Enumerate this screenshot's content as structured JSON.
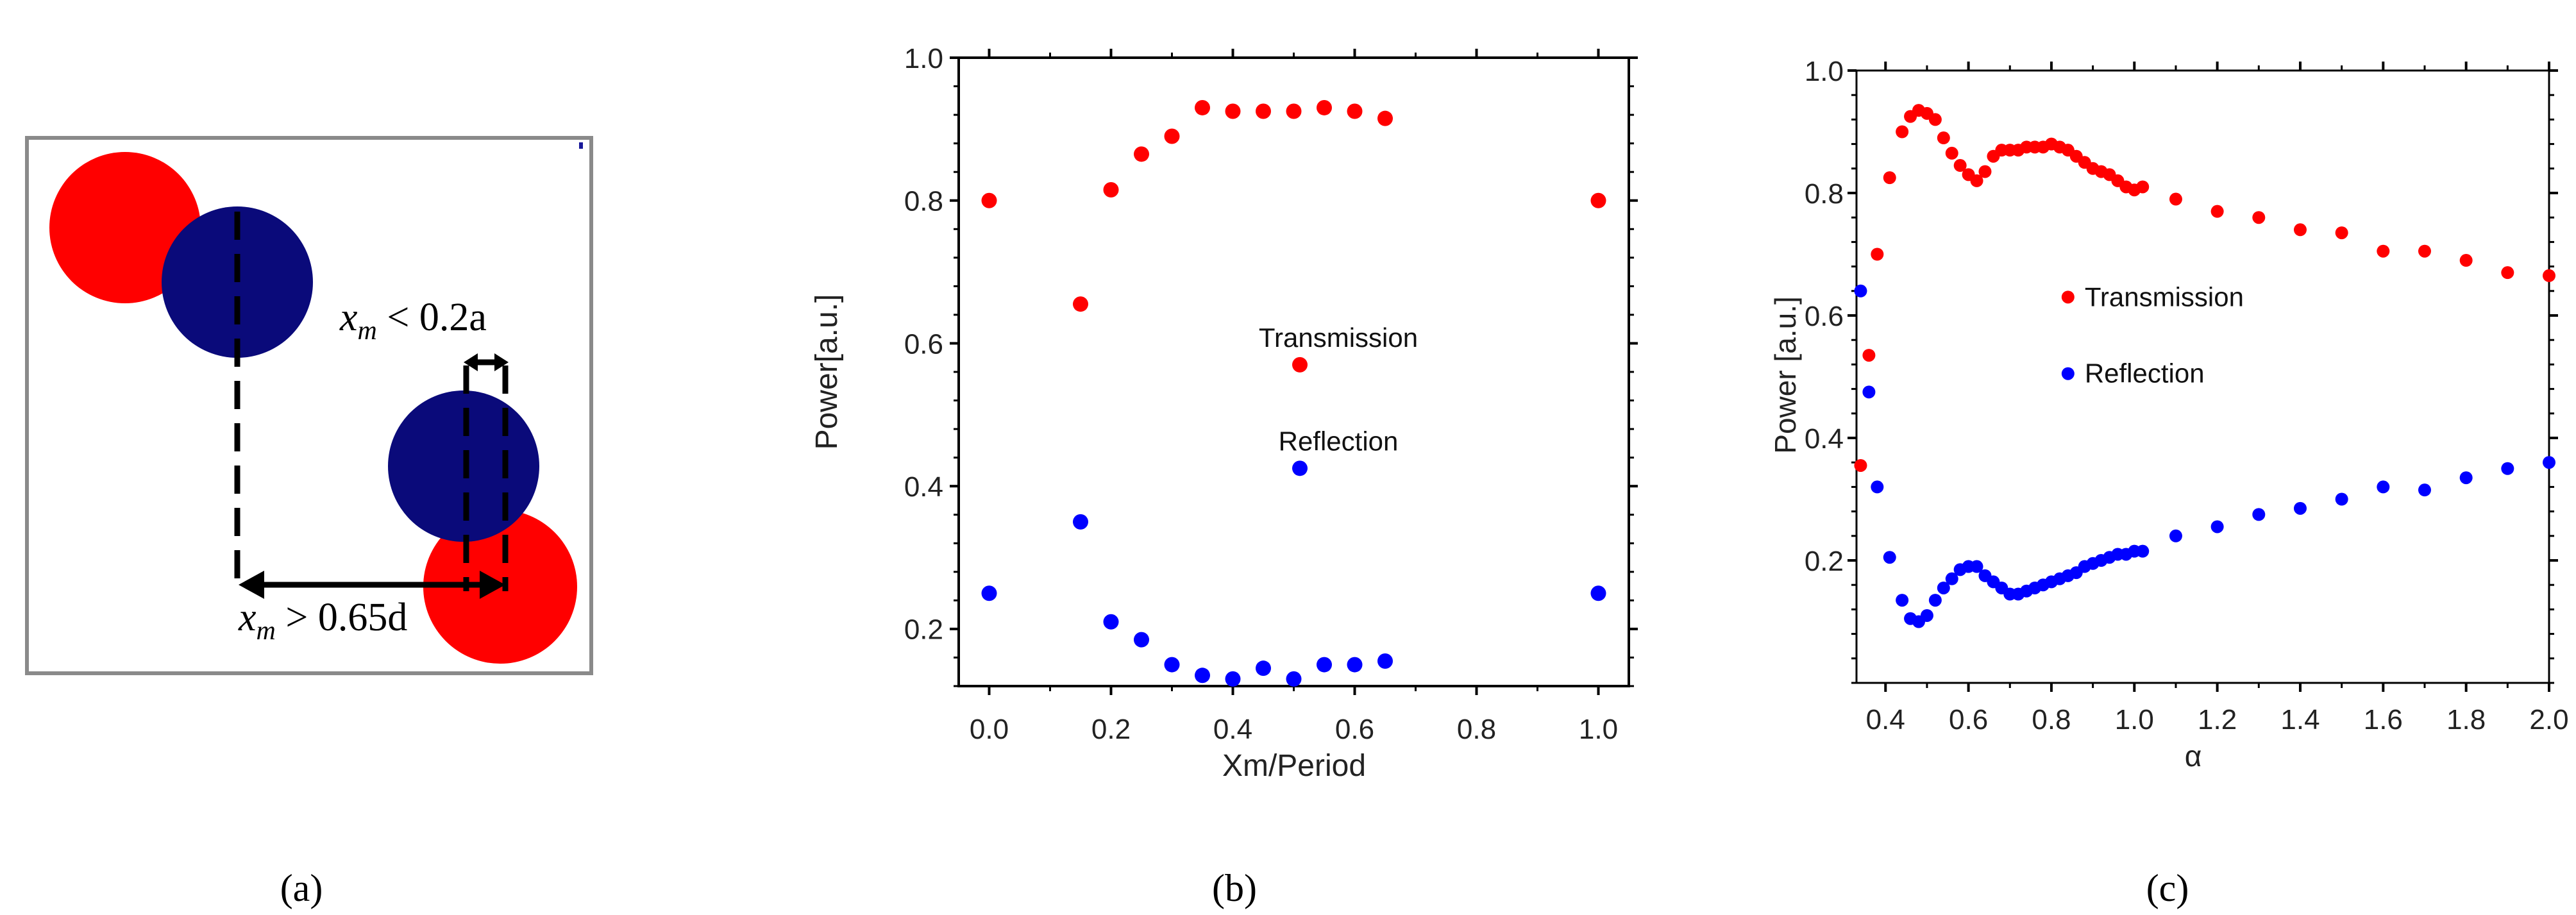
{
  "panel_labels": [
    "(a)",
    "(b)",
    "(c)"
  ],
  "panel_a": {
    "label_xm_small": "x",
    "label_xm_small_sub": "m",
    "label_xm_small_rest": " < 0.2a",
    "label_xm_large": "x",
    "label_xm_large_sub": "m",
    "label_xm_large_rest": " > 0.65d",
    "colors": {
      "red": "#ff0000",
      "navy": "#0a0a7a",
      "frame": "#8a8a8a"
    }
  },
  "chart_data": [
    {
      "type": "scatter",
      "panel": "(b)",
      "xlabel": "Xm/Period",
      "ylabel": "Power[a.u.]",
      "xlim": [
        -0.05,
        1.05
      ],
      "ylim": [
        0.12,
        1.0
      ],
      "xticks": [
        0.0,
        0.2,
        0.4,
        0.6,
        0.8,
        1.0
      ],
      "xtick_labels": [
        "0.0",
        "0.2",
        "0.4",
        "0.6",
        "0.8",
        "1.0"
      ],
      "yticks": [
        0.2,
        0.4,
        0.6,
        0.8,
        1.0
      ],
      "ytick_labels": [
        "0.2",
        "0.4",
        "0.6",
        "0.8",
        "1.0"
      ],
      "series": [
        {
          "name": "Transmission",
          "color": "#ff0000",
          "x": [
            0.0,
            0.15,
            0.2,
            0.25,
            0.3,
            0.35,
            0.4,
            0.45,
            0.5,
            0.55,
            0.6,
            0.65,
            1.0
          ],
          "y": [
            0.8,
            0.655,
            0.815,
            0.865,
            0.89,
            0.93,
            0.925,
            0.925,
            0.925,
            0.93,
            0.925,
            0.915,
            0.8
          ]
        },
        {
          "name": "Reflection",
          "color": "#0000ff",
          "x": [
            0.0,
            0.15,
            0.2,
            0.25,
            0.3,
            0.35,
            0.4,
            0.45,
            0.5,
            0.55,
            0.6,
            0.65,
            1.0
          ],
          "y": [
            0.25,
            0.35,
            0.21,
            0.185,
            0.15,
            0.135,
            0.13,
            0.145,
            0.13,
            0.15,
            0.15,
            0.155,
            0.25
          ]
        }
      ],
      "legend": [
        {
          "name": "Transmission",
          "color": "#ff0000",
          "marker_x": 0.51,
          "marker_y": 0.57
        },
        {
          "name": "Reflection",
          "color": "#0000ff",
          "marker_x": 0.51,
          "marker_y": 0.425
        }
      ],
      "legend_placement": "center"
    },
    {
      "type": "scatter",
      "panel": "(c)",
      "xlabel": "α",
      "ylabel": "Power [a.u.]",
      "xlim": [
        0.33,
        2.0
      ],
      "ylim": [
        0.0,
        1.0
      ],
      "xticks": [
        0.4,
        0.6,
        0.8,
        1.0,
        1.2,
        1.4,
        1.6,
        1.8,
        2.0
      ],
      "xtick_labels": [
        "0.4",
        "0.6",
        "0.8",
        "1.0",
        "1.2",
        "1.4",
        "1.6",
        "1.8",
        "2.0"
      ],
      "yticks": [
        0.2,
        0.4,
        0.6,
        0.8,
        1.0
      ],
      "ytick_labels": [
        "0.2",
        "0.4",
        "0.6",
        "0.8",
        "1.0"
      ],
      "series": [
        {
          "name": "Transmission",
          "color": "#ff0000",
          "x": [
            0.34,
            0.36,
            0.38,
            0.41,
            0.44,
            0.46,
            0.48,
            0.5,
            0.52,
            0.54,
            0.56,
            0.58,
            0.6,
            0.62,
            0.64,
            0.66,
            0.68,
            0.7,
            0.72,
            0.74,
            0.76,
            0.78,
            0.8,
            0.82,
            0.84,
            0.86,
            0.88,
            0.9,
            0.92,
            0.94,
            0.96,
            0.98,
            1.0,
            1.02,
            1.1,
            1.2,
            1.3,
            1.4,
            1.5,
            1.6,
            1.7,
            1.8,
            1.9,
            2.0
          ],
          "y": [
            0.355,
            0.535,
            0.7,
            0.825,
            0.9,
            0.925,
            0.935,
            0.93,
            0.92,
            0.89,
            0.865,
            0.845,
            0.83,
            0.82,
            0.835,
            0.86,
            0.87,
            0.87,
            0.87,
            0.875,
            0.875,
            0.875,
            0.88,
            0.875,
            0.87,
            0.86,
            0.85,
            0.84,
            0.835,
            0.83,
            0.82,
            0.81,
            0.805,
            0.81,
            0.79,
            0.77,
            0.76,
            0.74,
            0.735,
            0.705,
            0.705,
            0.69,
            0.67,
            0.665
          ]
        },
        {
          "name": "Reflection",
          "color": "#0000ff",
          "x": [
            0.34,
            0.36,
            0.38,
            0.41,
            0.44,
            0.46,
            0.48,
            0.5,
            0.52,
            0.54,
            0.56,
            0.58,
            0.6,
            0.62,
            0.64,
            0.66,
            0.68,
            0.7,
            0.72,
            0.74,
            0.76,
            0.78,
            0.8,
            0.82,
            0.84,
            0.86,
            0.88,
            0.9,
            0.92,
            0.94,
            0.96,
            0.98,
            1.0,
            1.02,
            1.1,
            1.2,
            1.3,
            1.4,
            1.5,
            1.6,
            1.7,
            1.8,
            1.9,
            2.0
          ],
          "y": [
            0.64,
            0.475,
            0.32,
            0.205,
            0.135,
            0.105,
            0.1,
            0.11,
            0.135,
            0.155,
            0.17,
            0.185,
            0.19,
            0.19,
            0.175,
            0.165,
            0.155,
            0.145,
            0.145,
            0.15,
            0.155,
            0.16,
            0.165,
            0.17,
            0.175,
            0.18,
            0.19,
            0.195,
            0.2,
            0.205,
            0.21,
            0.21,
            0.215,
            0.215,
            0.24,
            0.255,
            0.275,
            0.285,
            0.3,
            0.32,
            0.315,
            0.335,
            0.35,
            0.36
          ]
        }
      ],
      "legend": [
        {
          "name": "Transmission",
          "color": "#ff0000",
          "marker_x": 0.84,
          "marker_y": 0.63
        },
        {
          "name": "Reflection",
          "color": "#0000ff",
          "marker_x": 0.84,
          "marker_y": 0.505
        }
      ],
      "legend_placement": "center"
    }
  ]
}
